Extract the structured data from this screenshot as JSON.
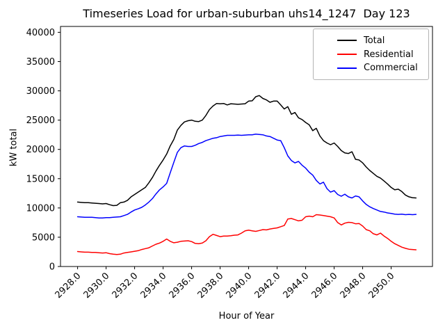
{
  "chart_data": {
    "type": "line",
    "title": "Timeseries Load for urban-suburban uhs14_1247  Day 123",
    "xlabel": "Hour of Year",
    "ylabel": "kW total",
    "grid": false,
    "legend_position": "upper right",
    "xlim": [
      2926.8,
      2952.9
    ],
    "ylim": [
      0,
      41000
    ],
    "x_ticks": [
      2928,
      2930,
      2932,
      2934,
      2936,
      2938,
      2940,
      2942,
      2944,
      2946,
      2948,
      2950
    ],
    "x_tick_labels": [
      "2928.0",
      "2930.0",
      "2932.0",
      "2934.0",
      "2936.0",
      "2938.0",
      "2940.0",
      "2942.0",
      "2944.0",
      "2946.0",
      "2948.0",
      "2950.0"
    ],
    "y_ticks": [
      0,
      5000,
      10000,
      15000,
      20000,
      25000,
      30000,
      35000,
      40000
    ],
    "y_tick_labels": [
      "0",
      "5000",
      "10000",
      "15000",
      "20000",
      "25000",
      "30000",
      "35000",
      "40000"
    ],
    "x_start": 2928.0,
    "x_step": 0.25,
    "n_points": 96,
    "series": [
      {
        "name": "Total",
        "color": "#000000",
        "values": [
          11000,
          10950,
          10900,
          10900,
          10850,
          10800,
          10750,
          10700,
          10750,
          10550,
          10400,
          10450,
          10900,
          11000,
          11300,
          11900,
          12300,
          12700,
          13100,
          13500,
          14300,
          15200,
          16300,
          17300,
          18200,
          19200,
          20600,
          21700,
          23300,
          24100,
          24700,
          24900,
          25000,
          24800,
          24750,
          25000,
          25800,
          26800,
          27400,
          27850,
          27800,
          27850,
          27600,
          27800,
          27750,
          27700,
          27750,
          27800,
          28250,
          28300,
          29000,
          29200,
          28700,
          28450,
          28050,
          28250,
          28250,
          27600,
          26900,
          27300,
          26000,
          26300,
          25400,
          25100,
          24600,
          24200,
          23200,
          23600,
          22300,
          21500,
          21100,
          20800,
          21100,
          20500,
          19800,
          19400,
          19300,
          19600,
          18300,
          18200,
          17700,
          17000,
          16400,
          15900,
          15400,
          15100,
          14600,
          14100,
          13500,
          13100,
          13200,
          12800,
          12200,
          11900,
          11750,
          11700
        ]
      },
      {
        "name": "Residential",
        "color": "#ff0000",
        "values": [
          2550,
          2500,
          2450,
          2450,
          2400,
          2400,
          2350,
          2300,
          2350,
          2200,
          2100,
          2050,
          2100,
          2300,
          2400,
          2500,
          2600,
          2700,
          2900,
          3050,
          3200,
          3500,
          3800,
          4000,
          4300,
          4700,
          4300,
          4050,
          4150,
          4300,
          4350,
          4400,
          4250,
          3950,
          3900,
          4000,
          4400,
          5100,
          5500,
          5300,
          5100,
          5200,
          5200,
          5250,
          5350,
          5400,
          5700,
          6100,
          6200,
          6100,
          6000,
          6150,
          6300,
          6250,
          6400,
          6500,
          6600,
          6800,
          7000,
          8100,
          8200,
          8000,
          7800,
          7900,
          8500,
          8600,
          8500,
          8850,
          8800,
          8700,
          8600,
          8500,
          8300,
          7500,
          7100,
          7400,
          7550,
          7500,
          7300,
          7350,
          6900,
          6300,
          6100,
          5600,
          5400,
          5700,
          5200,
          4800,
          4300,
          3900,
          3600,
          3300,
          3100,
          2950,
          2900,
          2850
        ]
      },
      {
        "name": "Commercial",
        "color": "#0000ff",
        "values": [
          8500,
          8450,
          8400,
          8400,
          8400,
          8350,
          8300,
          8300,
          8350,
          8350,
          8400,
          8450,
          8500,
          8700,
          8900,
          9300,
          9650,
          9850,
          10100,
          10500,
          11000,
          11600,
          12400,
          13100,
          13600,
          14200,
          16000,
          17800,
          19500,
          20300,
          20600,
          20500,
          20500,
          20700,
          21000,
          21200,
          21500,
          21700,
          21900,
          22000,
          22200,
          22300,
          22400,
          22400,
          22400,
          22450,
          22400,
          22450,
          22500,
          22500,
          22600,
          22550,
          22500,
          22300,
          22200,
          21900,
          21600,
          21500,
          20300,
          18900,
          18100,
          17700,
          17950,
          17300,
          16800,
          16100,
          15600,
          14700,
          14100,
          14400,
          13300,
          12700,
          12950,
          12300,
          12000,
          12350,
          11900,
          11700,
          12050,
          11900,
          11200,
          10600,
          10200,
          9900,
          9650,
          9400,
          9300,
          9150,
          9050,
          8950,
          8900,
          8950,
          8850,
          8900,
          8850,
          8900
        ]
      }
    ]
  }
}
